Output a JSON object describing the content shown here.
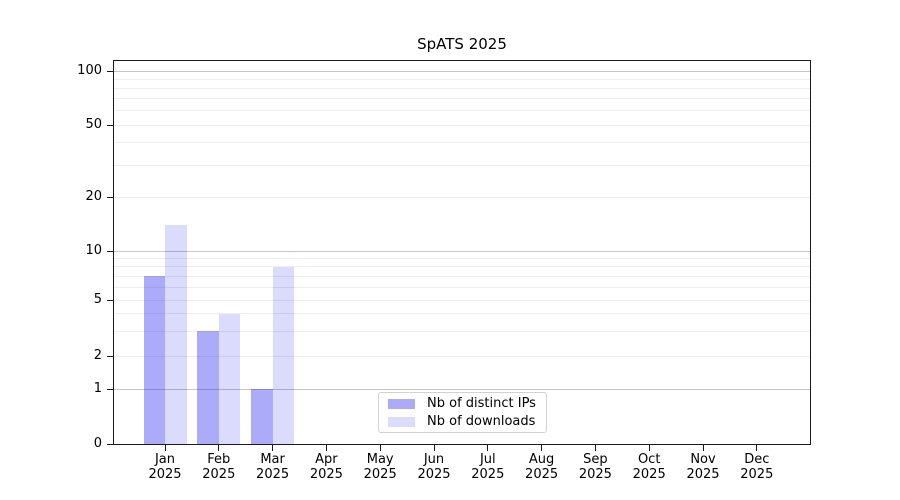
{
  "title": "SpATS 2025",
  "chart_data": {
    "type": "bar",
    "title": "SpATS 2025",
    "categories": [
      "Jan 2025",
      "Feb 2025",
      "Mar 2025",
      "Apr 2025",
      "May 2025",
      "Jun 2025",
      "Jul 2025",
      "Aug 2025",
      "Sep 2025",
      "Oct 2025",
      "Nov 2025",
      "Dec 2025"
    ],
    "series": [
      {
        "name": "Nb of distinct IPs",
        "color": "rgba(0,0,238,0.33)",
        "values": [
          7,
          3,
          1,
          0,
          0,
          0,
          0,
          0,
          0,
          0,
          0,
          0
        ]
      },
      {
        "name": "Nb of downloads",
        "color": "rgba(0,0,238,0.14)",
        "values": [
          14,
          4,
          8,
          0,
          0,
          0,
          0,
          0,
          0,
          0,
          0,
          0
        ]
      }
    ],
    "xlabel": "",
    "ylabel": "",
    "yscale": "symlog",
    "ylim": [
      0,
      113
    ],
    "y_ticks": [
      0,
      1,
      2,
      5,
      10,
      20,
      50,
      100
    ],
    "y_tick_labels": [
      "0",
      "1",
      "2",
      "5",
      "10",
      "20",
      "50",
      "100"
    ],
    "y_grid_major": [
      1,
      10,
      100
    ],
    "y_grid_minor": [
      2,
      3,
      4,
      5,
      6,
      7,
      8,
      9,
      20,
      30,
      40,
      50,
      60,
      70,
      80,
      90
    ],
    "grid": "horizontal",
    "legend_position": "lower center"
  },
  "legend": {
    "entries": [
      {
        "label": "Nb of distinct IPs",
        "swatch_color": "rgba(0,0,238,0.33)"
      },
      {
        "label": "Nb of downloads",
        "swatch_color": "rgba(0,0,238,0.14)"
      }
    ]
  }
}
